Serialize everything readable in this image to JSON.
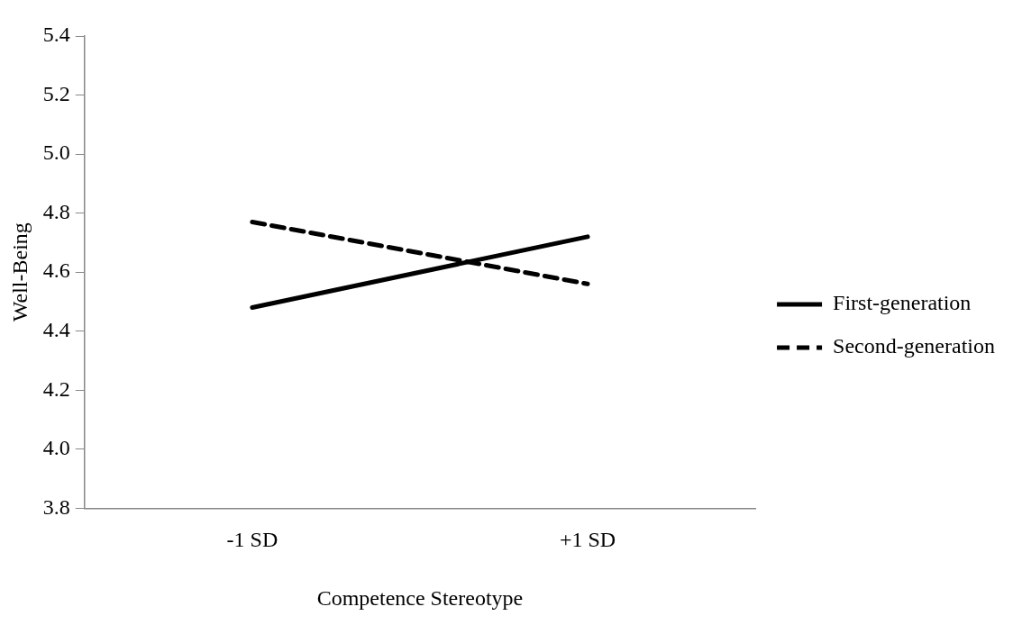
{
  "chart_data": {
    "type": "line",
    "xlabel": "Competence Stereotype",
    "ylabel": "Well-Being",
    "categories": [
      "-1 SD",
      "+1 SD"
    ],
    "series": [
      {
        "name": "First-generation",
        "color": "#000000",
        "values": [
          4.48,
          4.72
        ],
        "line_style": "solid"
      },
      {
        "name": "Second-generation",
        "color": "#000000",
        "values": [
          4.77,
          4.56
        ],
        "line_style": "dashed"
      }
    ],
    "ylim": [
      3.8,
      5.4
    ],
    "yticks": [
      3.8,
      {
        "value": 4,
        "label": "4.0"
      },
      4.2,
      4.4,
      4.6,
      4.8,
      {
        "value": 5,
        "label": "5.0"
      },
      5.2,
      5.4
    ],
    "grid": false,
    "legend": "right",
    "marker": "none"
  }
}
